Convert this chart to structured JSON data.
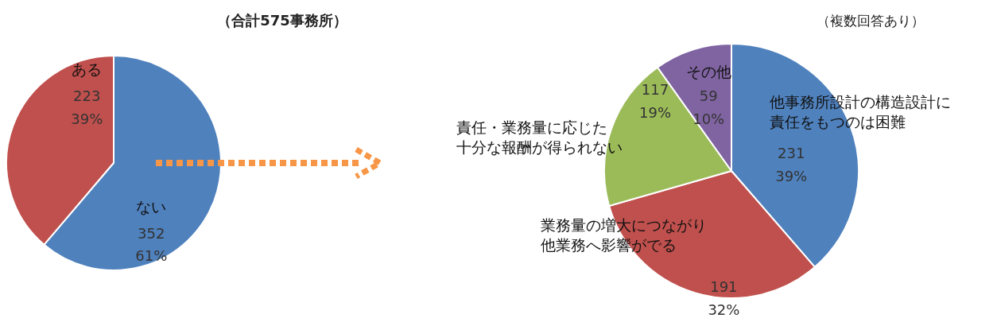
{
  "chart_data": [
    {
      "type": "pie",
      "title": "（合計575事務所）",
      "categories": [
        "ある",
        "ない"
      ],
      "values": [
        223,
        352
      ],
      "colors": [
        "#c0504d",
        "#4f81bd"
      ],
      "value_labels": [
        "223 39%",
        "352 61%"
      ]
    },
    {
      "type": "pie",
      "subtitle": "（複数回答あり）",
      "categories": [
        "他事務所設計の構造設計に責任をもつのは困難",
        "業務量の増大につながり他業務へ影響がでる",
        "責任・業務量に応じた十分な報酬が得られない",
        "その他"
      ],
      "values": [
        231,
        191,
        117,
        59
      ],
      "colors": [
        "#4f81bd",
        "#c0504d",
        "#9bbb59",
        "#8064a2"
      ],
      "value_labels": [
        "231 39%",
        "191 32%",
        "117 19%",
        "59 10%"
      ]
    }
  ]
}
